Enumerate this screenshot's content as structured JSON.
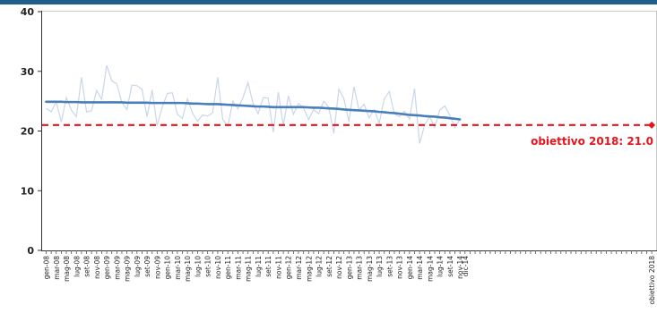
{
  "chart_data": {
    "type": "line",
    "title": "",
    "xlabel": "",
    "ylabel": "",
    "ylim": [
      0,
      40
    ],
    "yticks": [
      0,
      10,
      20,
      30,
      40
    ],
    "grid": false,
    "legend": "none",
    "x_labels": [
      "gen-08",
      "mar-08",
      "mag-08",
      "lug-08",
      "set-08",
      "nov-08",
      "gen-09",
      "mar-09",
      "mag-09",
      "lug-09",
      "set-09",
      "nov-09",
      "gen-10",
      "mar-10",
      "mag-10",
      "lug-10",
      "set-10",
      "nov-10",
      "gen-11",
      "mar-11",
      "mag-11",
      "lug-11",
      "set-11",
      "nov-11",
      "gen-12",
      "mar-12",
      "mag-12",
      "lug-12",
      "set-12",
      "nov-12",
      "gen-13",
      "mar-13",
      "mag-13",
      "lug-13",
      "set-13",
      "nov-13",
      "gen-14",
      "mar-14",
      "mag-14",
      "lug-14",
      "set-14",
      "nov-14",
      "dic-14"
    ],
    "target_label": "obiettivo 2018",
    "series": [
      {
        "role": "monthly",
        "color": "#c9d6ea",
        "values": [
          23.8,
          23.2,
          24.9,
          21.5,
          25.6,
          23.5,
          22.4,
          29.0,
          23.2,
          23.4,
          26.8,
          25.3,
          31.0,
          28.4,
          27.9,
          24.8,
          23.6,
          27.7,
          27.6,
          27.0,
          22.4,
          26.9,
          20.9,
          24.0,
          26.3,
          26.4,
          22.8,
          22.1,
          25.4,
          23.0,
          21.6,
          22.7,
          22.5,
          23.1,
          29.0,
          21.9,
          20.8,
          25.0,
          23.7,
          25.6,
          28.1,
          24.6,
          22.9,
          25.6,
          25.5,
          19.8,
          26.5,
          20.9,
          25.9,
          22.8,
          24.6,
          23.9,
          21.9,
          23.6,
          22.9,
          25.0,
          24.0,
          19.6,
          27.0,
          25.4,
          21.6,
          27.4,
          23.5,
          24.5,
          22.2,
          23.6,
          21.3,
          25.4,
          26.6,
          22.9,
          22.4,
          23.3,
          22.0,
          27.1,
          17.9,
          21.0,
          22.4,
          20.6,
          23.5,
          24.2,
          22.6,
          20.6,
          22.0
        ]
      },
      {
        "role": "trend",
        "color": "#4a7ebb",
        "values": [
          24.9,
          24.9,
          24.9,
          24.9,
          24.85,
          24.85,
          24.85,
          24.8,
          24.8,
          24.8,
          24.8,
          24.8,
          24.8,
          24.8,
          24.8,
          24.8,
          24.75,
          24.75,
          24.75,
          24.75,
          24.75,
          24.7,
          24.7,
          24.7,
          24.7,
          24.7,
          24.7,
          24.7,
          24.65,
          24.6,
          24.6,
          24.55,
          24.5,
          24.5,
          24.5,
          24.45,
          24.4,
          24.35,
          24.3,
          24.25,
          24.2,
          24.15,
          24.1,
          24.1,
          24.05,
          24.0,
          24.0,
          24.0,
          24.0,
          24.0,
          24.0,
          24.0,
          23.95,
          23.9,
          23.9,
          23.85,
          23.8,
          23.75,
          23.7,
          23.6,
          23.55,
          23.5,
          23.45,
          23.4,
          23.35,
          23.3,
          23.2,
          23.15,
          23.05,
          23.0,
          22.9,
          22.8,
          22.7,
          22.65,
          22.6,
          22.5,
          22.45,
          22.4,
          22.3,
          22.25,
          22.15,
          22.05,
          21.95
        ]
      },
      {
        "role": "target",
        "color": "#e8141c",
        "value": 21.0,
        "label": "obiettivo  2018: 21.0"
      }
    ]
  }
}
